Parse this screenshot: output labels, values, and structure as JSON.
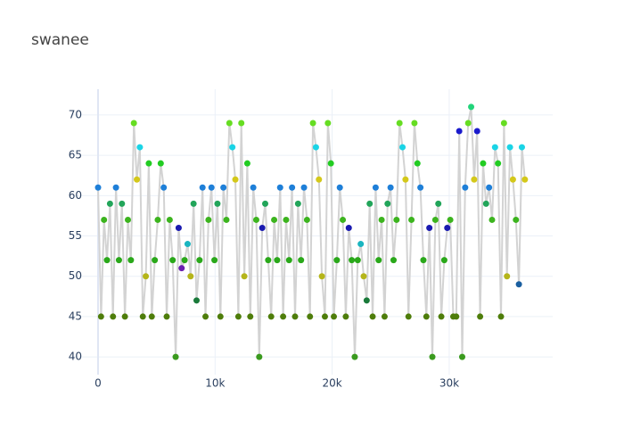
{
  "chart_data": {
    "type": "line",
    "title": "swanee",
    "mode": "lines+markers",
    "line_color": "#d3d3d3",
    "xlim": [
      -2285,
      38840
    ],
    "ylim": [
      37.8,
      73.2
    ],
    "xticks": [
      0,
      {
        "value": 10000,
        "label": "10k"
      },
      {
        "value": 20000,
        "label": "20k"
      },
      {
        "value": 30000,
        "label": "30k"
      }
    ],
    "yticks": [
      40,
      45,
      50,
      55,
      60,
      65,
      70
    ],
    "grid": true,
    "x": [
      0,
      255,
      510,
      765,
      1020,
      1275,
      1530,
      1785,
      2040,
      2295,
      2550,
      2805,
      3060,
      3315,
      3570,
      3825,
      4080,
      4335,
      4590,
      4845,
      5100,
      5355,
      5610,
      5865,
      6120,
      6375,
      6630,
      6885,
      7140,
      7395,
      7650,
      7905,
      8160,
      8415,
      8670,
      8925,
      9180,
      9435,
      9690,
      9945,
      10200,
      10455,
      10710,
      10965,
      11220,
      11475,
      11730,
      11985,
      12240,
      12495,
      12750,
      13005,
      13260,
      13515,
      13770,
      14025,
      14280,
      14535,
      14790,
      15045,
      15300,
      15555,
      15810,
      16065,
      16320,
      16575,
      16830,
      17085,
      17340,
      17595,
      17850,
      18105,
      18360,
      18615,
      18870,
      19125,
      19380,
      19635,
      19890,
      20145,
      20400,
      20655,
      20910,
      21165,
      21420,
      21675,
      21930,
      22185,
      22440,
      22695,
      22950,
      23205,
      23460,
      23715,
      23970,
      24225,
      24480,
      24735,
      24990,
      25245,
      25500,
      25755,
      26010,
      26265,
      26520,
      26775,
      27030,
      27285,
      27540,
      27795,
      28050,
      28305,
      28560,
      28815,
      29070,
      29325,
      29580,
      29835,
      30090,
      30345,
      30600,
      30855,
      31110,
      31365,
      31620,
      31875,
      32130,
      32385,
      32640,
      32895,
      33150,
      33405,
      33660,
      33915,
      34170,
      34425,
      34680,
      34935,
      35190,
      35445,
      35700,
      35955,
      36210,
      36465
    ],
    "values": [
      61,
      45,
      57,
      52,
      59,
      45,
      61,
      52,
      59,
      45,
      57,
      52,
      69,
      62,
      66,
      45,
      50,
      64,
      45,
      52,
      57,
      64,
      61,
      45,
      57,
      52,
      40,
      56,
      51,
      52,
      54,
      50,
      59,
      47,
      52,
      61,
      45,
      57,
      61,
      52,
      59,
      45,
      61,
      57,
      69,
      66,
      62,
      45,
      69,
      50,
      64,
      45,
      61,
      57,
      40,
      56,
      59,
      52,
      45,
      57,
      52,
      61,
      45,
      57,
      52,
      61,
      45,
      59,
      52,
      61,
      57,
      45,
      69,
      66,
      62,
      50,
      45,
      69,
      64,
      45,
      52,
      61,
      57,
      45,
      56,
      52,
      40,
      52,
      54,
      50,
      47,
      59,
      45,
      61,
      52,
      57,
      45,
      59,
      61,
      52,
      57,
      69,
      66,
      62,
      45,
      57,
      69,
      64,
      61,
      52,
      45,
      56,
      40,
      57,
      59,
      45,
      52,
      56,
      57,
      45,
      45,
      68,
      40,
      61,
      69,
      71,
      62,
      68,
      45,
      64,
      59,
      61,
      57,
      66,
      64,
      45,
      69,
      50,
      66,
      62,
      57,
      49,
      66,
      62
    ],
    "colors": [
      "#1e7fd8",
      "#4e7d0a",
      "#3cb41e",
      "#2aa81a",
      "#22a55a",
      "#4e7d0a",
      "#1e7fd8",
      "#2aa81a",
      "#22a55a",
      "#4e7d0a",
      "#3cb41e",
      "#2aa81a",
      "#66dd22",
      "#d4c81a",
      "#1ad4e6",
      "#4e7d0a",
      "#b5b51a",
      "#22cc22",
      "#4e7d0a",
      "#2aa81a",
      "#3cb41e",
      "#22cc22",
      "#1e7fd8",
      "#4e7d0a",
      "#3cb41e",
      "#2aa81a",
      "#3a9a1e",
      "#1a1ab0",
      "#6a1fb0",
      "#2aa81a",
      "#1ab5c0",
      "#b5b51a",
      "#22a55a",
      "#1a7a3a",
      "#2aa81a",
      "#1e7fd8",
      "#4e7d0a",
      "#3cb41e",
      "#1e7fd8",
      "#2aa81a",
      "#22a55a",
      "#4e7d0a",
      "#1e7fd8",
      "#3cb41e",
      "#66dd22",
      "#1ad4e6",
      "#d4c81a",
      "#4e7d0a",
      "#66dd22",
      "#b5b51a",
      "#22cc22",
      "#4e7d0a",
      "#1e7fd8",
      "#3cb41e",
      "#3a9a1e",
      "#1a1ab0",
      "#22a55a",
      "#2aa81a",
      "#4e7d0a",
      "#3cb41e",
      "#2aa81a",
      "#1e7fd8",
      "#4e7d0a",
      "#3cb41e",
      "#2aa81a",
      "#1e7fd8",
      "#4e7d0a",
      "#22a55a",
      "#2aa81a",
      "#1e7fd8",
      "#3cb41e",
      "#4e7d0a",
      "#66dd22",
      "#1ad4e6",
      "#d4c81a",
      "#b5b51a",
      "#4e7d0a",
      "#66dd22",
      "#22cc22",
      "#4e7d0a",
      "#2aa81a",
      "#1e7fd8",
      "#3cb41e",
      "#4e7d0a",
      "#1a1ab0",
      "#2aa81a",
      "#3a9a1e",
      "#2aa81a",
      "#1ab5c0",
      "#b5b51a",
      "#1a7a3a",
      "#22a55a",
      "#4e7d0a",
      "#1e7fd8",
      "#2aa81a",
      "#3cb41e",
      "#4e7d0a",
      "#22a55a",
      "#1e7fd8",
      "#2aa81a",
      "#3cb41e",
      "#66dd22",
      "#1ad4e6",
      "#d4c81a",
      "#4e7d0a",
      "#3cb41e",
      "#66dd22",
      "#22cc22",
      "#1e7fd8",
      "#2aa81a",
      "#4e7d0a",
      "#1a1ab0",
      "#3a9a1e",
      "#3cb41e",
      "#22a55a",
      "#4e7d0a",
      "#2aa81a",
      "#1a1ab0",
      "#3cb41e",
      "#4e7d0a",
      "#4e7d0a",
      "#1a1acc",
      "#3a9a1e",
      "#1e7fd8",
      "#66dd22",
      "#22d47a",
      "#d4c81a",
      "#1a1acc",
      "#4e7d0a",
      "#22cc22",
      "#22a55a",
      "#1e7fd8",
      "#3cb41e",
      "#1ad4e6",
      "#22cc22",
      "#4e7d0a",
      "#66dd22",
      "#b5b51a",
      "#1ad4e6",
      "#d4c81a",
      "#3cb41e",
      "#1a5fa0",
      "#1ad4e6",
      "#d4c81a"
    ]
  }
}
